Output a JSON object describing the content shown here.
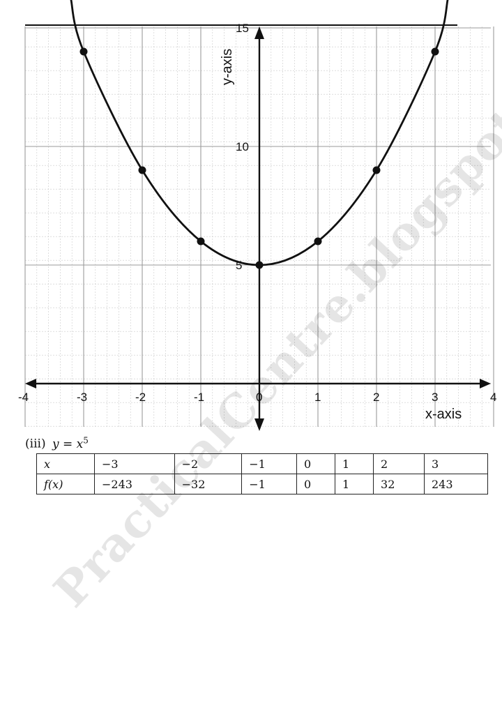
{
  "chart_data": {
    "type": "line",
    "title": "",
    "xlabel": "x-axis",
    "ylabel": "y-axis",
    "xlim": [
      -4,
      4
    ],
    "ylim": [
      0,
      15
    ],
    "grid": true,
    "x_ticks": [
      "-4",
      "-3",
      "-2",
      "-1",
      "0",
      "1",
      "2",
      "3",
      "4"
    ],
    "x_tick_values": [
      -4,
      -3,
      -2,
      -1,
      0,
      1,
      2,
      3,
      4
    ],
    "y_ticks": [
      "5",
      "10",
      "15"
    ],
    "y_tick_values": [
      5,
      10,
      15
    ],
    "curve_equation": "y = x^2 + 5",
    "series": [
      {
        "x": [
          -3,
          -2,
          -1,
          0,
          1,
          2,
          3
        ],
        "y": [
          14,
          9,
          6,
          5,
          6,
          9,
          14
        ]
      }
    ],
    "line_color": "#111111",
    "grid_color": "#9a9a9a"
  },
  "problem": {
    "label": "(iii)",
    "equation_base": "y = x",
    "equation_exp": "5"
  },
  "table": {
    "rows": [
      {
        "head": "x",
        "cells": [
          "−3",
          "−2",
          "−1",
          "0",
          "1",
          "2",
          "3"
        ]
      },
      {
        "head": "f(x)",
        "cells": [
          "−243",
          "−32",
          "−1",
          "0",
          "1",
          "32",
          "243"
        ]
      }
    ]
  },
  "watermark": {
    "text": "PracticalCentre.blogspot.com"
  }
}
